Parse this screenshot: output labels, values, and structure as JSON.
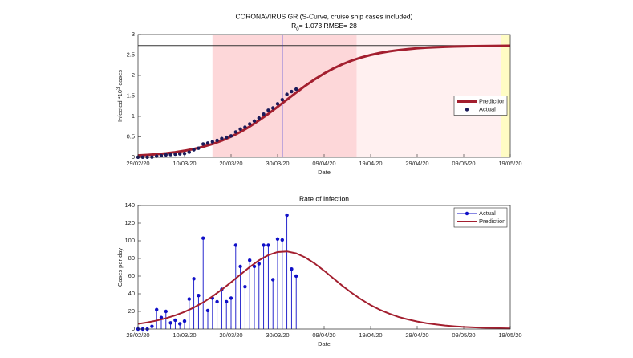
{
  "chart_data": [
    {
      "type": "line",
      "title": "CORONAVIRUS GR (S-Curve,  cruise ship cases included)",
      "subtitle": [
        "R",
        "0",
        "= 1.073  RMSE= 28"
      ],
      "xlabel": "Date",
      "ylabel": [
        "Infected *10",
        "3",
        " cases"
      ],
      "xlim": [
        "29/02/20",
        "19/05/20"
      ],
      "xticks": [
        "29/02/20",
        "10/03/20",
        "20/03/20",
        "30/03/20",
        "09/04/20",
        "19/04/20",
        "29/04/20",
        "09/05/20",
        "19/05/20"
      ],
      "ylim": [
        0,
        3
      ],
      "yticks": [
        0,
        0.5,
        1,
        1.5,
        2,
        2.5,
        3
      ],
      "legend": "east",
      "regions": [
        {
          "start": "16/03/20",
          "end": "16/04/20",
          "color": "#fdd7d9"
        },
        {
          "start": "16/04/20",
          "end": "17/05/20",
          "color": "#fff0f0"
        },
        {
          "start": "17/05/20",
          "end": "19/05/20",
          "color": "#fffcc4"
        }
      ],
      "vline": {
        "x": "31/03/20",
        "color": "#3333dd"
      },
      "hline": {
        "y": 2.73,
        "color": "#333333"
      },
      "series": [
        {
          "name": "Prediction",
          "type": "line",
          "color": "#a31f2f",
          "x": [
            "29/02/20",
            "02/03/20",
            "04/03/20",
            "06/03/20",
            "08/03/20",
            "10/03/20",
            "12/03/20",
            "14/03/20",
            "16/03/20",
            "18/03/20",
            "20/03/20",
            "22/03/20",
            "24/03/20",
            "26/03/20",
            "28/03/20",
            "30/03/20",
            "01/04/20",
            "03/04/20",
            "05/04/20",
            "07/04/20",
            "09/04/20",
            "11/04/20",
            "13/04/20",
            "15/04/20",
            "17/04/20",
            "19/04/20",
            "21/04/20",
            "23/04/20",
            "25/04/20",
            "27/04/20",
            "29/04/20",
            "01/05/20",
            "03/05/20",
            "05/05/20",
            "07/05/20",
            "09/05/20",
            "11/05/20",
            "13/05/20",
            "15/05/20",
            "17/05/20",
            "19/05/20"
          ],
          "values": [
            0.046,
            0.059,
            0.076,
            0.098,
            0.126,
            0.161,
            0.204,
            0.259,
            0.325,
            0.407,
            0.505,
            0.619,
            0.752,
            0.901,
            1.062,
            1.235,
            1.409,
            1.583,
            1.751,
            1.906,
            2.047,
            2.17,
            2.277,
            2.366,
            2.44,
            2.5,
            2.549,
            2.588,
            2.619,
            2.643,
            2.663,
            2.678,
            2.689,
            2.698,
            2.706,
            2.711,
            2.715,
            2.719,
            2.721,
            2.723,
            2.725
          ]
        },
        {
          "name": "Actual",
          "type": "scatter",
          "color": "#1b1b5a",
          "x": [
            "29/02/20",
            "01/03/20",
            "02/03/20",
            "03/03/20",
            "04/03/20",
            "05/03/20",
            "06/03/20",
            "07/03/20",
            "08/03/20",
            "09/03/20",
            "10/03/20",
            "11/03/20",
            "12/03/20",
            "13/03/20",
            "14/03/20",
            "15/03/20",
            "16/03/20",
            "17/03/20",
            "18/03/20",
            "19/03/20",
            "20/03/20",
            "21/03/20",
            "22/03/20",
            "23/03/20",
            "24/03/20",
            "25/03/20",
            "26/03/20",
            "27/03/20",
            "28/03/20",
            "29/03/20",
            "30/03/20",
            "31/03/20",
            "01/04/20",
            "02/04/20",
            "03/04/20"
          ],
          "values": [
            0.003,
            0.003,
            0.003,
            0.006,
            0.028,
            0.041,
            0.061,
            0.068,
            0.078,
            0.084,
            0.093,
            0.127,
            0.184,
            0.222,
            0.325,
            0.346,
            0.381,
            0.412,
            0.457,
            0.488,
            0.523,
            0.618,
            0.689,
            0.737,
            0.815,
            0.886,
            0.96,
            1.055,
            1.15,
            1.206,
            1.308,
            1.409,
            1.538,
            1.606,
            1.666
          ]
        }
      ]
    },
    {
      "type": "stem",
      "title": "Rate of Infection",
      "xlabel": "Date",
      "ylabel": "Cases per day",
      "xlim": [
        "29/02/20",
        "19/05/20"
      ],
      "xticks": [
        "29/02/20",
        "10/03/20",
        "20/03/20",
        "30/03/20",
        "09/04/20",
        "19/04/20",
        "29/04/20",
        "09/05/20",
        "19/05/20"
      ],
      "ylim": [
        0,
        140
      ],
      "yticks": [
        0,
        20,
        40,
        60,
        80,
        100,
        120,
        140
      ],
      "legend": "northeast",
      "series": [
        {
          "name": "Actual",
          "type": "stem",
          "color": "#1010c8",
          "x": [
            "29/02/20",
            "01/03/20",
            "02/03/20",
            "03/03/20",
            "04/03/20",
            "05/03/20",
            "06/03/20",
            "07/03/20",
            "08/03/20",
            "09/03/20",
            "10/03/20",
            "11/03/20",
            "12/03/20",
            "13/03/20",
            "14/03/20",
            "15/03/20",
            "16/03/20",
            "17/03/20",
            "18/03/20",
            "19/03/20",
            "20/03/20",
            "21/03/20",
            "22/03/20",
            "23/03/20",
            "24/03/20",
            "25/03/20",
            "26/03/20",
            "27/03/20",
            "28/03/20",
            "29/03/20",
            "30/03/20",
            "31/03/20",
            "01/04/20",
            "02/04/20",
            "03/04/20"
          ],
          "values": [
            0,
            0,
            0,
            3,
            22,
            13,
            20,
            7,
            10,
            6,
            9,
            34,
            57,
            38,
            103,
            21,
            35,
            31,
            45,
            31,
            35,
            95,
            71,
            48,
            78,
            71,
            74,
            95,
            95,
            56,
            102,
            101,
            129,
            68,
            60
          ]
        },
        {
          "name": "Prediction",
          "type": "line",
          "color": "#a31f2f",
          "x": [
            "29/02/20",
            "02/03/20",
            "04/03/20",
            "06/03/20",
            "08/03/20",
            "10/03/20",
            "12/03/20",
            "14/03/20",
            "16/03/20",
            "18/03/20",
            "20/03/20",
            "22/03/20",
            "24/03/20",
            "26/03/20",
            "28/03/20",
            "30/03/20",
            "01/04/20",
            "03/04/20",
            "05/04/20",
            "07/04/20",
            "09/04/20",
            "11/04/20",
            "13/04/20",
            "15/04/20",
            "17/04/20",
            "19/04/20",
            "21/04/20",
            "23/04/20",
            "25/04/20",
            "27/04/20",
            "29/04/20",
            "01/05/20",
            "03/05/20",
            "05/05/20",
            "07/05/20",
            "09/05/20",
            "11/05/20",
            "13/05/20",
            "15/05/20",
            "17/05/20",
            "19/05/20"
          ],
          "values": [
            5.85,
            7.49,
            9.59,
            12.2,
            15.5,
            19.5,
            24.4,
            30.2,
            37,
            44.7,
            53,
            61.7,
            70.3,
            77.9,
            83.8,
            87.3,
            88,
            85.8,
            81,
            74.2,
            66.1,
            57.4,
            48.7,
            40.7,
            33.5,
            27.1,
            21.8,
            17.4,
            13.7,
            10.9,
            8.5,
            6.6,
            5.2,
            4,
            3.1,
            2.4,
            1.9,
            1.5,
            1.1,
            0.9,
            0.7
          ]
        }
      ]
    }
  ]
}
